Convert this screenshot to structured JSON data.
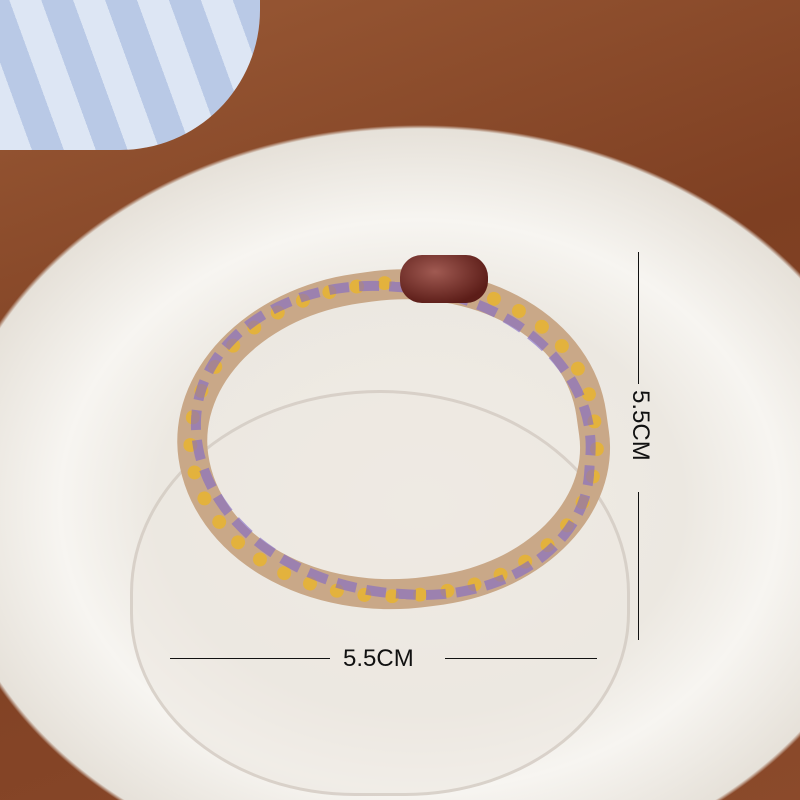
{
  "photo": {
    "subject": "hair-tie-on-plate",
    "colors": {
      "wood": "#8b4a2b",
      "plate": "#ece8e1",
      "tie": "#c9a888",
      "bead": "#6b2520"
    }
  },
  "dimensions": {
    "width_label": "5.5CM",
    "height_label": "5.5CM"
  }
}
